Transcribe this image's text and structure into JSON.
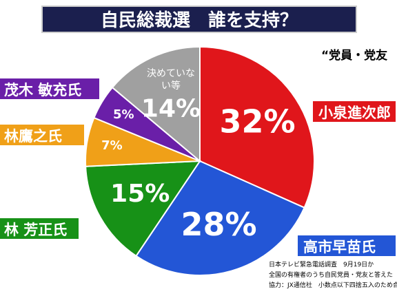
{
  "chart_data": {
    "type": "pie",
    "title": "自民総裁選　誰を支持？",
    "subtitle": "“党員・党友",
    "categories": [
      "小泉進次郎",
      "高市早苗氏",
      "林 芳正氏",
      "林鷹之氏",
      "茂木 敏充氏",
      "決めていない等"
    ],
    "values": [
      32,
      28,
      15,
      7,
      5,
      14
    ],
    "value_labels": [
      "32%",
      "28%",
      "15%",
      "7%",
      "5%",
      "14%"
    ],
    "colors": [
      "#e0161b",
      "#2356d6",
      "#179117",
      "#f0a018",
      "#6a1fa8",
      "#a0a0a0"
    ],
    "notes": [
      "日本テレビ緊急電話調査　9月19日か",
      "全国の有権者のうち自民党員・党友と答えた",
      "協力：JX通信社　小数点以下四捨五入のため合計"
    ]
  }
}
